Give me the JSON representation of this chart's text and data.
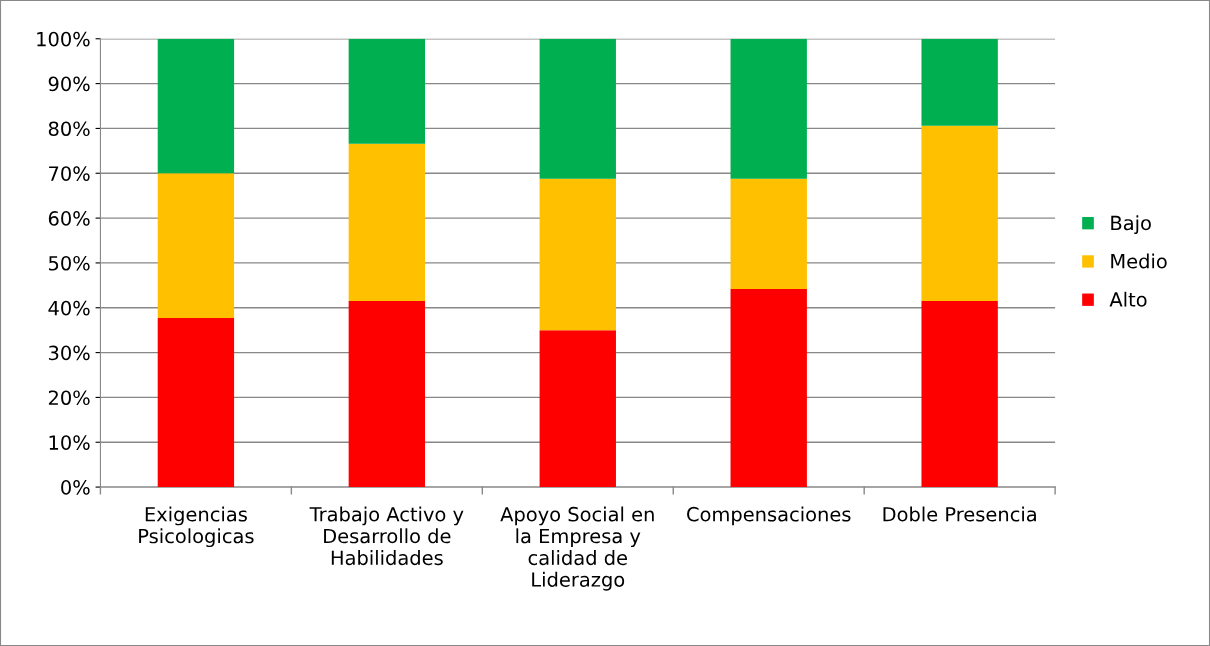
{
  "chart_data": {
    "type": "bar",
    "stacked": true,
    "categories": [
      "Exigencias\nPsicologicas",
      "Trabajo Activo y\nDesarrollo de\nHabilidades",
      "Apoyo Social en\nla Empresa y\ncalidad de\nLiderazgo",
      "Compensaciones",
      "Doble Presencia"
    ],
    "series": [
      {
        "name": "Alto",
        "color": "#ff0000",
        "values": [
          37.7,
          41.5,
          35.0,
          44.2,
          41.5
        ]
      },
      {
        "name": "Medio",
        "color": "#ffc000",
        "values": [
          32.3,
          35.1,
          33.8,
          24.6,
          39.1
        ]
      },
      {
        "name": "Bajo",
        "color": "#00b050",
        "values": [
          30.0,
          23.4,
          31.2,
          31.2,
          19.4
        ]
      }
    ],
    "ylim": [
      0,
      100
    ],
    "yticks": [
      {
        "value": 0,
        "label": "0%"
      },
      {
        "value": 10,
        "label": "10%"
      },
      {
        "value": 20,
        "label": "20%"
      },
      {
        "value": 30,
        "label": "30%"
      },
      {
        "value": 40,
        "label": "40%"
      },
      {
        "value": 50,
        "label": "50%"
      },
      {
        "value": 60,
        "label": "60%"
      },
      {
        "value": 70,
        "label": "70%"
      },
      {
        "value": 80,
        "label": "80%"
      },
      {
        "value": 90,
        "label": "90%"
      },
      {
        "value": 100,
        "label": "100%"
      }
    ],
    "grid": "y",
    "legend": "right"
  }
}
